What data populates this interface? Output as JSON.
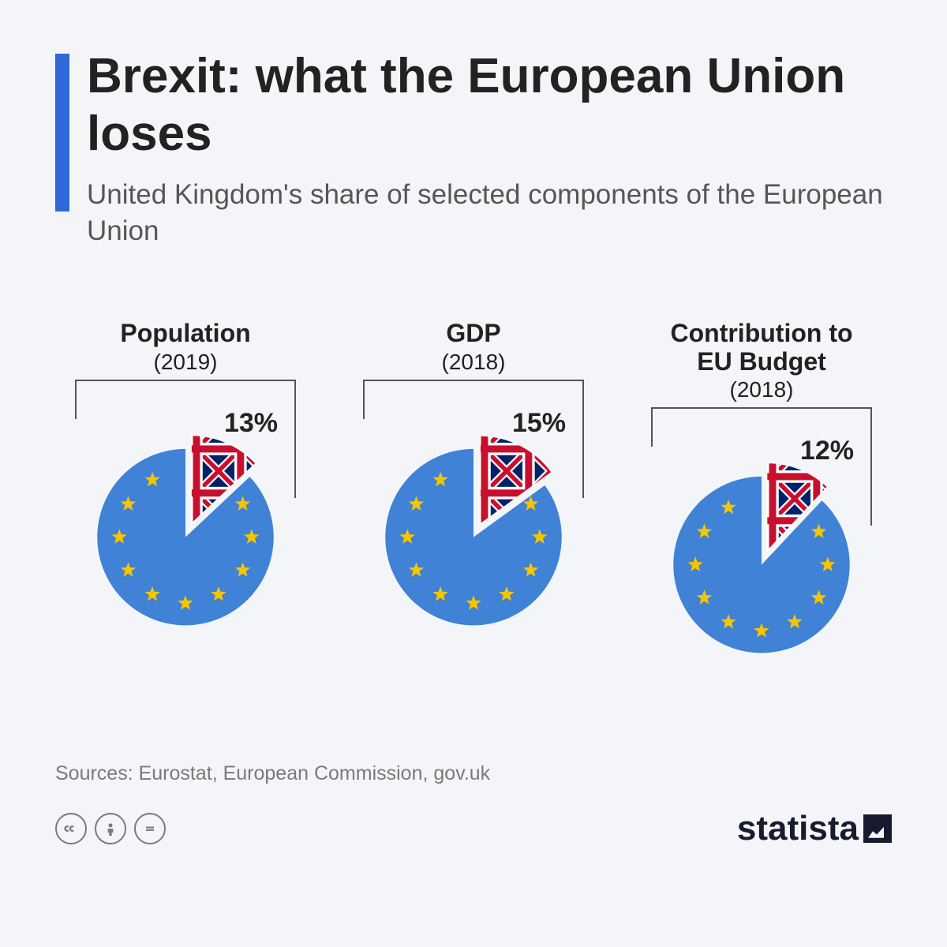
{
  "title": "Brexit: what the European Union loses",
  "subtitle": "United Kingdom's share of selected components of the European Union",
  "eu_color": "#3f82d6",
  "star_color": "#f7c400",
  "uk_blue": "#012169",
  "uk_red": "#C8102E",
  "uk_white": "#ffffff",
  "charts": [
    {
      "label": "Population",
      "year": "(2019)",
      "value_pct": 13,
      "value_label": "13%"
    },
    {
      "label": "GDP",
      "year": "(2018)",
      "value_pct": 15,
      "value_label": "15%"
    },
    {
      "label": "Contribution to EU Budget",
      "year": "(2018)",
      "value_pct": 12,
      "value_label": "12%"
    }
  ],
  "sources": "Sources: Eurostat, European Commission, gov.uk",
  "brand": "statista",
  "chart_radius": 120,
  "slice_pop_out": 20,
  "star_ring_radius": 90,
  "star_size": 11
}
